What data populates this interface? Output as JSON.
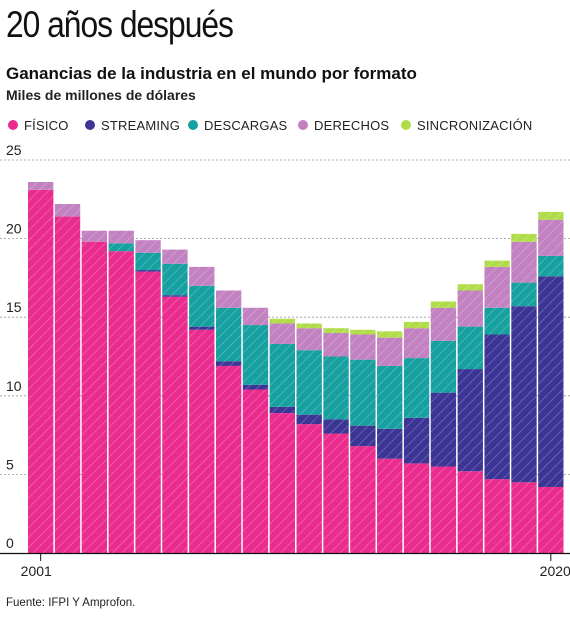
{
  "headline": "20 años después",
  "subtitle": "Ganancias de la industria en el mundo por formato",
  "units": "Miles de millones de dólares",
  "source": "Fuente: IFPI Y Amprofon.",
  "legend": [
    {
      "label": "FÍSICO",
      "color": "#ea2c8f"
    },
    {
      "label": "STREAMING",
      "color": "#3c3596"
    },
    {
      "label": "DESCARGAS",
      "color": "#17a0a0"
    },
    {
      "label": "DERECHOS",
      "color": "#c281c0"
    },
    {
      "label": "SINCRONIZACIÓN",
      "color": "#b1dc4a"
    }
  ],
  "chart_data": {
    "type": "bar",
    "stacked": true,
    "categories": [
      "2001",
      "2002",
      "2003",
      "2004",
      "2005",
      "2006",
      "2007",
      "2008",
      "2009",
      "2010",
      "2011",
      "2012",
      "2013",
      "2014",
      "2015",
      "2016",
      "2017",
      "2018",
      "2019",
      "2020"
    ],
    "x_tick_labels": [
      "2001",
      "2020"
    ],
    "ylim": [
      0,
      25
    ],
    "yticks": [
      0,
      5,
      10,
      15,
      20,
      25
    ],
    "grid": true,
    "legend_position": "top",
    "series": [
      {
        "name": "FÍSICO",
        "color": "#ea2c8f",
        "values": [
          23.1,
          21.4,
          19.8,
          19.2,
          17.9,
          16.3,
          14.2,
          11.9,
          10.4,
          8.9,
          8.2,
          7.6,
          6.8,
          6.0,
          5.7,
          5.5,
          5.2,
          4.7,
          4.5,
          4.2
        ]
      },
      {
        "name": "STREAMING",
        "color": "#3c3596",
        "values": [
          0.0,
          0.0,
          0.0,
          0.0,
          0.1,
          0.1,
          0.2,
          0.3,
          0.3,
          0.4,
          0.6,
          0.9,
          1.3,
          1.9,
          2.9,
          4.7,
          6.5,
          9.2,
          11.2,
          13.4
        ]
      },
      {
        "name": "DESCARGAS",
        "color": "#17a0a0",
        "values": [
          0.0,
          0.0,
          0.0,
          0.5,
          1.1,
          2.0,
          2.6,
          3.4,
          3.8,
          4.0,
          4.1,
          4.0,
          4.2,
          4.0,
          3.8,
          3.3,
          2.7,
          1.7,
          1.5,
          1.3
        ]
      },
      {
        "name": "DERECHOS",
        "color": "#c281c0",
        "values": [
          0.5,
          0.8,
          0.7,
          0.8,
          0.8,
          0.9,
          1.2,
          1.1,
          1.1,
          1.3,
          1.4,
          1.5,
          1.6,
          1.8,
          1.9,
          2.1,
          2.3,
          2.6,
          2.6,
          2.3
        ]
      },
      {
        "name": "SINCRONIZACIÓN",
        "color": "#b1dc4a",
        "values": [
          0.0,
          0.0,
          0.0,
          0.0,
          0.0,
          0.0,
          0.0,
          0.0,
          0.0,
          0.3,
          0.3,
          0.3,
          0.3,
          0.4,
          0.4,
          0.4,
          0.4,
          0.4,
          0.5,
          0.5
        ]
      }
    ]
  }
}
